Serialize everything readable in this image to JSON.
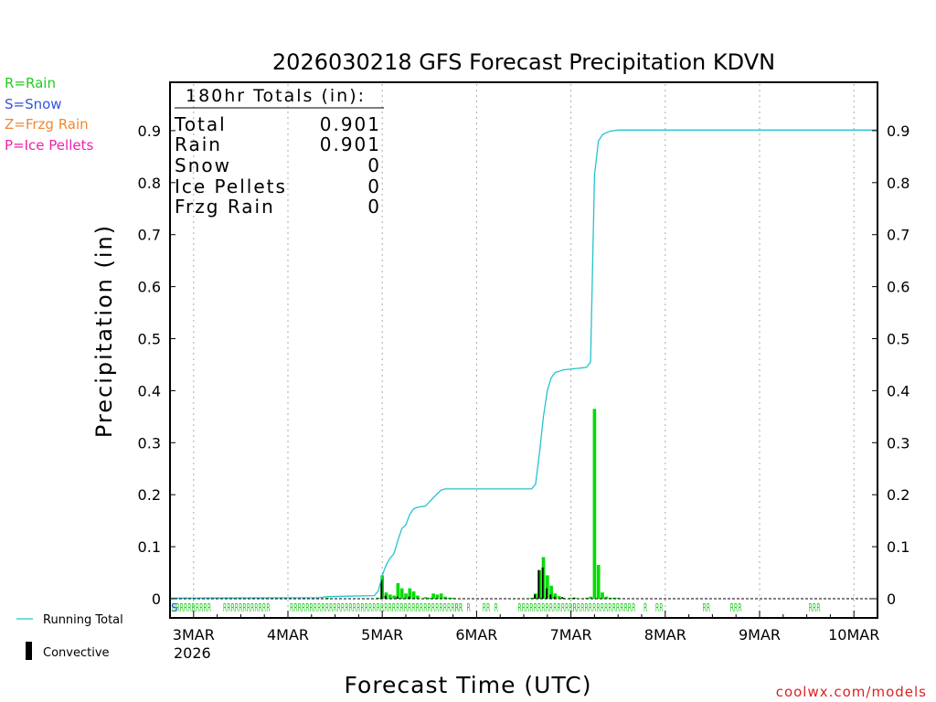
{
  "chart_data": {
    "type": "bar",
    "title": "2026030218 GFS Forecast Precipitation KDVN",
    "xlabel": "Forecast Time (UTC)",
    "ylabel": "Precipitation (in)",
    "ylim": [
      0,
      1.0
    ],
    "yticks": [
      "0",
      "0.1",
      "0.2",
      "0.3",
      "0.4",
      "0.5",
      "0.6",
      "0.7",
      "0.8",
      "0.9"
    ],
    "xlim_hours": [
      0,
      180
    ],
    "day_ticks": [
      {
        "hour": 6,
        "label": "3MAR"
      },
      {
        "hour": 30,
        "label": "4MAR"
      },
      {
        "hour": 54,
        "label": "5MAR"
      },
      {
        "hour": 78,
        "label": "6MAR"
      },
      {
        "hour": 102,
        "label": "7MAR"
      },
      {
        "hour": 126,
        "label": "8MAR"
      },
      {
        "hour": 150,
        "label": "9MAR"
      },
      {
        "hour": 174,
        "label": "10MAR"
      }
    ],
    "year_label": "2026",
    "legend_types": [
      {
        "label": "R=Rain",
        "color": "#22cc22"
      },
      {
        "label": "S=Snow",
        "color": "#3355dd"
      },
      {
        "label": "Z=Frzg Rain",
        "color": "#ee8833"
      },
      {
        "label": "P=Ice Pellets",
        "color": "#ee22aa"
      }
    ],
    "legend_series": [
      {
        "label": "Running Total",
        "color": "#22c4cc"
      },
      {
        "label": "Convective",
        "color": "#000000"
      }
    ],
    "totals": {
      "heading": "180hr Totals (in):",
      "rows": [
        {
          "label": "Total",
          "value": "0.901"
        },
        {
          "label": "Rain",
          "value": "0.901"
        },
        {
          "label": "Snow",
          "value": "0"
        },
        {
          "label": "Ice Pellets",
          "value": "0"
        },
        {
          "label": "Frzg Rain",
          "value": "0"
        }
      ]
    },
    "precip_series": {
      "name": "Precipitation",
      "color": "#00dd00",
      "bars": [
        {
          "hour": 40,
          "value": 0.001
        },
        {
          "hour": 53,
          "value": 0.002
        },
        {
          "hour": 54,
          "value": 0.045
        },
        {
          "hour": 55,
          "value": 0.012
        },
        {
          "hour": 56,
          "value": 0.008
        },
        {
          "hour": 57,
          "value": 0.006
        },
        {
          "hour": 58,
          "value": 0.03
        },
        {
          "hour": 59,
          "value": 0.02
        },
        {
          "hour": 60,
          "value": 0.01
        },
        {
          "hour": 61,
          "value": 0.02
        },
        {
          "hour": 62,
          "value": 0.014
        },
        {
          "hour": 63,
          "value": 0.006
        },
        {
          "hour": 65,
          "value": 0.003
        },
        {
          "hour": 66,
          "value": 0.002
        },
        {
          "hour": 67,
          "value": 0.01
        },
        {
          "hour": 68,
          "value": 0.008
        },
        {
          "hour": 69,
          "value": 0.01
        },
        {
          "hour": 70,
          "value": 0.004
        },
        {
          "hour": 71,
          "value": 0.002
        },
        {
          "hour": 72,
          "value": 0.001
        },
        {
          "hour": 92,
          "value": 0.002
        },
        {
          "hour": 93,
          "value": 0.01
        },
        {
          "hour": 94,
          "value": 0.055
        },
        {
          "hour": 95,
          "value": 0.08
        },
        {
          "hour": 96,
          "value": 0.045
        },
        {
          "hour": 97,
          "value": 0.025
        },
        {
          "hour": 98,
          "value": 0.01
        },
        {
          "hour": 99,
          "value": 0.005
        },
        {
          "hour": 100,
          "value": 0.002
        },
        {
          "hour": 102,
          "value": 0.001
        },
        {
          "hour": 103,
          "value": 0.002
        },
        {
          "hour": 106,
          "value": 0.002
        },
        {
          "hour": 107,
          "value": 0.004
        },
        {
          "hour": 108,
          "value": 0.365
        },
        {
          "hour": 109,
          "value": 0.065
        },
        {
          "hour": 110,
          "value": 0.012
        },
        {
          "hour": 111,
          "value": 0.004
        },
        {
          "hour": 112,
          "value": 0.002
        },
        {
          "hour": 113,
          "value": 0.002
        },
        {
          "hour": 114,
          "value": 0.001
        }
      ]
    },
    "convective_series": {
      "name": "Convective",
      "color": "#000000",
      "bars": [
        {
          "hour": 54,
          "value": 0.038
        },
        {
          "hour": 55,
          "value": 0.006
        },
        {
          "hour": 58,
          "value": 0.004
        },
        {
          "hour": 61,
          "value": 0.004
        },
        {
          "hour": 93,
          "value": 0.008
        },
        {
          "hour": 94,
          "value": 0.055
        },
        {
          "hour": 95,
          "value": 0.06
        },
        {
          "hour": 96,
          "value": 0.02
        },
        {
          "hour": 97,
          "value": 0.008
        },
        {
          "hour": 98,
          "value": 0.004
        },
        {
          "hour": 100,
          "value": 0.003
        },
        {
          "hour": 103,
          "value": 0.002
        }
      ]
    },
    "running_total": {
      "name": "Running Total",
      "color": "#22c4cc",
      "points": [
        [
          0,
          0.001
        ],
        [
          38,
          0.002
        ],
        [
          40,
          0.004
        ],
        [
          52,
          0.006
        ],
        [
          53,
          0.015
        ],
        [
          54,
          0.045
        ],
        [
          55,
          0.065
        ],
        [
          56,
          0.078
        ],
        [
          57,
          0.087
        ],
        [
          58,
          0.113
        ],
        [
          59,
          0.135
        ],
        [
          60,
          0.142
        ],
        [
          61,
          0.162
        ],
        [
          62,
          0.173
        ],
        [
          63,
          0.176
        ],
        [
          65,
          0.178
        ],
        [
          67,
          0.194
        ],
        [
          68,
          0.202
        ],
        [
          69,
          0.209
        ],
        [
          70,
          0.211
        ],
        [
          72,
          0.211
        ],
        [
          92,
          0.211
        ],
        [
          93,
          0.22
        ],
        [
          94,
          0.28
        ],
        [
          95,
          0.35
        ],
        [
          96,
          0.4
        ],
        [
          97,
          0.425
        ],
        [
          98,
          0.435
        ],
        [
          99,
          0.437
        ],
        [
          100,
          0.44
        ],
        [
          104,
          0.443
        ],
        [
          106,
          0.445
        ],
        [
          107,
          0.455
        ],
        [
          108,
          0.815
        ],
        [
          109,
          0.88
        ],
        [
          110,
          0.892
        ],
        [
          111,
          0.896
        ],
        [
          112,
          0.899
        ],
        [
          114,
          0.901
        ],
        [
          180,
          0.901
        ]
      ]
    },
    "ptype_strip": {
      "color": "#22cc22",
      "snow_color": "#3355dd",
      "snow_marks": [
        {
          "hour": 0,
          "text": "S"
        }
      ],
      "rain_marks": [
        {
          "hour": 0,
          "text": "RRRRRRRRRR"
        },
        {
          "hour": 13,
          "text": "RRRRRRRRRRRR"
        },
        {
          "hour": 30,
          "text": "RRRRRRRRRRRRRRRRRRRRRRRRRRRRRRRRRRRRRRRRRRRR"
        },
        {
          "hour": 72,
          "text": "RR"
        },
        {
          "hour": 75,
          "text": "R"
        },
        {
          "hour": 79,
          "text": "RR"
        },
        {
          "hour": 82,
          "text": "R"
        },
        {
          "hour": 88,
          "text": "RRRRRRRRRRRRRRR"
        },
        {
          "hour": 102,
          "text": "RRRRRRRRRRRRRRRR"
        },
        {
          "hour": 120,
          "text": "R"
        },
        {
          "hour": 123,
          "text": "RR"
        },
        {
          "hour": 135,
          "text": "RR"
        },
        {
          "hour": 142,
          "text": "RRR"
        },
        {
          "hour": 162,
          "text": "RRR"
        }
      ]
    },
    "credit": "coolwx.com/models"
  }
}
